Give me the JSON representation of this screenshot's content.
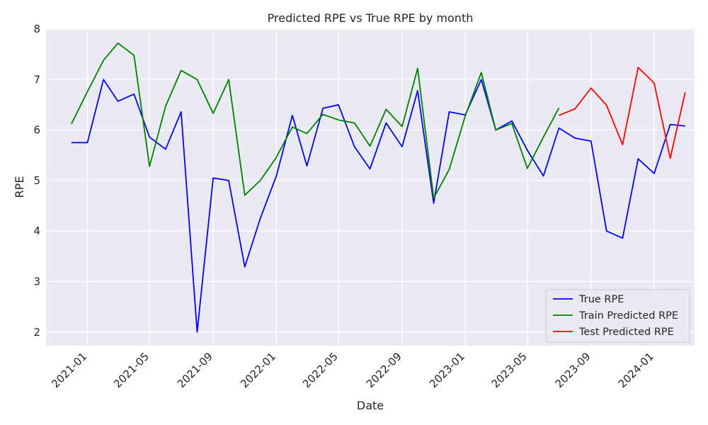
{
  "chart_data": {
    "type": "line",
    "title": "Predicted RPE vs True RPE by month",
    "xlabel": "Date",
    "ylabel": "RPE",
    "x_ticks": [
      "2021-01",
      "2021-05",
      "2021-09",
      "2022-01",
      "2022-05",
      "2022-09",
      "2023-01",
      "2023-05",
      "2023-09",
      "2024-01"
    ],
    "y_ticks": [
      "2",
      "3",
      "4",
      "5",
      "6",
      "7",
      "8"
    ],
    "ylim": [
      1.73,
      8.0
    ],
    "xlim": [
      "2020-10-13",
      "2024-03-19"
    ],
    "grid": true,
    "legend_position": "lower-right",
    "background": "#eaeaf2",
    "series": [
      {
        "name": "True RPE",
        "color": "#0000ff",
        "x": [
          "2020-12-01",
          "2021-01-01",
          "2021-02-01",
          "2021-03-01",
          "2021-04-01",
          "2021-05-01",
          "2021-06-01",
          "2021-07-01",
          "2021-08-01",
          "2021-09-01",
          "2021-10-01",
          "2021-11-01",
          "2021-12-01",
          "2022-01-01",
          "2022-02-01",
          "2022-03-01",
          "2022-04-01",
          "2022-05-01",
          "2022-06-01",
          "2022-07-01",
          "2022-08-01",
          "2022-09-01",
          "2022-10-01",
          "2022-11-01",
          "2022-12-01",
          "2023-01-01",
          "2023-02-01",
          "2023-03-01",
          "2023-04-01",
          "2023-05-01",
          "2023-06-01",
          "2023-07-01",
          "2023-08-01",
          "2023-09-01",
          "2023-10-01",
          "2023-11-01",
          "2023-12-01",
          "2024-01-01",
          "2024-02-01",
          "2024-03-01"
        ],
        "values": [
          5.75,
          5.75,
          7.0,
          6.57,
          6.71,
          5.86,
          5.62,
          6.36,
          2.0,
          5.05,
          5.0,
          3.29,
          4.25,
          5.09,
          6.29,
          5.29,
          6.43,
          6.5,
          5.67,
          5.23,
          6.14,
          5.67,
          6.78,
          4.55,
          6.36,
          6.3,
          7.0,
          6.0,
          6.18,
          5.6,
          5.09,
          6.04,
          5.84,
          5.78,
          4.0,
          3.86,
          5.43,
          5.14,
          6.11,
          6.08
        ]
      },
      {
        "name": "Train Predicted RPE",
        "color": "#008000",
        "x": [
          "2020-12-01",
          "2021-01-01",
          "2021-02-01",
          "2021-03-01",
          "2021-04-01",
          "2021-05-01",
          "2021-06-01",
          "2021-07-01",
          "2021-08-01",
          "2021-09-01",
          "2021-10-01",
          "2021-11-01",
          "2021-12-01",
          "2022-01-01",
          "2022-02-01",
          "2022-03-01",
          "2022-04-01",
          "2022-05-01",
          "2022-06-01",
          "2022-07-01",
          "2022-08-01",
          "2022-09-01",
          "2022-10-01",
          "2022-11-01",
          "2022-12-01",
          "2023-01-01",
          "2023-02-01",
          "2023-03-01",
          "2023-04-01",
          "2023-05-01",
          "2023-06-01",
          "2023-07-01"
        ],
        "values": [
          6.12,
          6.76,
          7.38,
          7.72,
          7.48,
          5.28,
          6.47,
          7.18,
          7.0,
          6.33,
          7.0,
          4.71,
          5.0,
          5.46,
          6.06,
          5.93,
          6.31,
          6.2,
          6.14,
          5.68,
          6.41,
          6.07,
          7.22,
          4.65,
          5.22,
          6.28,
          7.14,
          6.0,
          6.13,
          5.24,
          5.86,
          6.44
        ]
      },
      {
        "name": "Test Predicted RPE",
        "color": "#ff0000",
        "x": [
          "2023-07-01",
          "2023-08-01",
          "2023-09-01",
          "2023-10-01",
          "2023-11-01",
          "2023-12-01",
          "2024-01-01",
          "2024-02-01",
          "2024-03-01"
        ],
        "values": [
          6.29,
          6.42,
          6.83,
          6.49,
          5.71,
          7.24,
          6.93,
          5.44,
          6.75
        ]
      }
    ]
  }
}
